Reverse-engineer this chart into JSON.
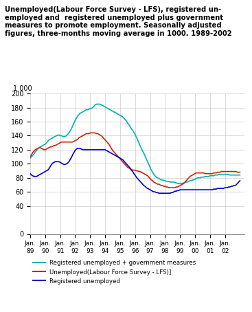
{
  "title": "Unemployed(Labour Force Survey - LFS), registered un-\nemployed and  registered unemployed plus government\nmeasures to promote employment. Seasonally adjusted\nfigures, three-months moving average in 1000. 1989-2002",
  "ylabel_top": "1 000",
  "ylim": [
    0,
    200
  ],
  "yticks": [
    0,
    40,
    60,
    80,
    100,
    120,
    140,
    160,
    180,
    200
  ],
  "background_color": "#ffffff",
  "grid_color": "#cccccc",
  "colors": {
    "registered_plus_gov": "#00b0b0",
    "lfs": "#cc2200",
    "registered": "#0000cc"
  },
  "legend": [
    {
      "label": "Registered unemployed + government measures",
      "color": "#00b0b0"
    },
    {
      "label": "Unemployed(Labour Force Survey - LFS)]",
      "color": "#cc2200"
    },
    {
      "label": "Registered unemployed",
      "color": "#0000cc"
    }
  ],
  "x_tick_labels": [
    "Jan.\n89",
    "Jan.\n90",
    "Jan.\n91",
    "Jan.\n92",
    "Jan.\n93",
    "Jan.\n94",
    "Jan.\n95",
    "Jan.\n96",
    "Jan.\n97",
    "Jan.\n98",
    "Jan.\n99",
    "Jan.\n00",
    "Jan.\n01",
    "Jan.\n02"
  ],
  "n_months": 169,
  "reg_plus_gov": [
    108,
    110,
    112,
    114,
    117,
    119,
    121,
    123,
    124,
    125,
    126,
    127,
    128,
    130,
    132,
    134,
    135,
    136,
    137,
    138,
    139,
    140,
    141,
    141,
    140,
    140,
    139,
    139,
    139,
    140,
    142,
    144,
    147,
    150,
    154,
    158,
    162,
    165,
    168,
    170,
    172,
    173,
    174,
    175,
    176,
    177,
    177,
    178,
    178,
    179,
    180,
    182,
    184,
    185,
    185,
    185,
    185,
    184,
    183,
    182,
    181,
    180,
    179,
    178,
    177,
    176,
    175,
    174,
    173,
    172,
    171,
    170,
    169,
    168,
    167,
    165,
    163,
    161,
    158,
    156,
    153,
    150,
    148,
    145,
    142,
    138,
    134,
    130,
    126,
    122,
    118,
    115,
    111,
    107,
    103,
    99,
    95,
    91,
    88,
    85,
    83,
    81,
    80,
    79,
    78,
    77,
    77,
    76,
    76,
    75,
    75,
    75,
    74,
    74,
    74,
    74,
    73,
    73,
    72,
    72,
    72,
    72,
    72,
    73,
    73,
    74,
    74,
    75,
    76,
    76,
    77,
    77,
    78,
    79,
    80,
    80,
    80,
    81,
    81,
    81,
    82,
    82,
    82,
    82,
    83,
    83,
    83,
    83,
    84,
    84,
    84,
    85,
    85,
    85,
    85,
    85,
    85,
    85,
    85,
    85,
    84,
    84,
    84,
    84,
    84,
    84,
    84,
    84,
    84
  ],
  "lfs": [
    110,
    113,
    116,
    118,
    120,
    121,
    122,
    123,
    123,
    122,
    121,
    120,
    120,
    121,
    122,
    123,
    124,
    124,
    125,
    126,
    126,
    127,
    128,
    129,
    130,
    131,
    131,
    131,
    131,
    131,
    131,
    131,
    131,
    131,
    131,
    132,
    133,
    134,
    135,
    137,
    138,
    139,
    140,
    141,
    142,
    143,
    143,
    143,
    144,
    144,
    144,
    144,
    144,
    143,
    143,
    142,
    141,
    140,
    138,
    136,
    134,
    132,
    130,
    128,
    125,
    122,
    119,
    117,
    115,
    113,
    111,
    109,
    107,
    105,
    103,
    101,
    99,
    97,
    95,
    94,
    93,
    92,
    91,
    91,
    91,
    90,
    90,
    89,
    89,
    88,
    87,
    86,
    85,
    84,
    83,
    81,
    79,
    77,
    76,
    74,
    73,
    72,
    71,
    71,
    70,
    69,
    69,
    68,
    68,
    67,
    67,
    66,
    66,
    66,
    66,
    66,
    66,
    67,
    67,
    68,
    69,
    70,
    71,
    72,
    74,
    76,
    78,
    80,
    82,
    83,
    84,
    85,
    86,
    87,
    87,
    87,
    87,
    87,
    87,
    87,
    86,
    86,
    86,
    86,
    86,
    86,
    86,
    87,
    87,
    87,
    88,
    88,
    88,
    89,
    89,
    89,
    89,
    89,
    89,
    89,
    89,
    89,
    89,
    89,
    89,
    89,
    88,
    88,
    88
  ],
  "registered": [
    86,
    84,
    83,
    82,
    82,
    82,
    83,
    84,
    85,
    86,
    87,
    88,
    89,
    90,
    91,
    93,
    96,
    99,
    101,
    102,
    103,
    103,
    103,
    103,
    102,
    101,
    100,
    99,
    99,
    100,
    101,
    103,
    106,
    109,
    113,
    116,
    119,
    121,
    122,
    122,
    122,
    121,
    120,
    120,
    120,
    120,
    120,
    120,
    120,
    120,
    120,
    120,
    120,
    120,
    120,
    120,
    120,
    120,
    120,
    120,
    120,
    119,
    118,
    117,
    116,
    115,
    114,
    113,
    112,
    111,
    110,
    109,
    108,
    107,
    106,
    104,
    102,
    100,
    98,
    96,
    94,
    91,
    89,
    86,
    84,
    81,
    79,
    77,
    75,
    73,
    71,
    69,
    68,
    66,
    65,
    64,
    63,
    62,
    61,
    60,
    60,
    59,
    59,
    58,
    58,
    58,
    58,
    58,
    58,
    58,
    58,
    58,
    58,
    59,
    59,
    60,
    61,
    61,
    62,
    62,
    63,
    63,
    63,
    63,
    63,
    63,
    63,
    63,
    63,
    63,
    63,
    63,
    63,
    63,
    63,
    63,
    63,
    63,
    63,
    63,
    63,
    63,
    63,
    63,
    63,
    63,
    63,
    64,
    64,
    64,
    65,
    65,
    65,
    65,
    65,
    65,
    66,
    66,
    66,
    67,
    67,
    68,
    68,
    69,
    69,
    70,
    72,
    74,
    76
  ]
}
